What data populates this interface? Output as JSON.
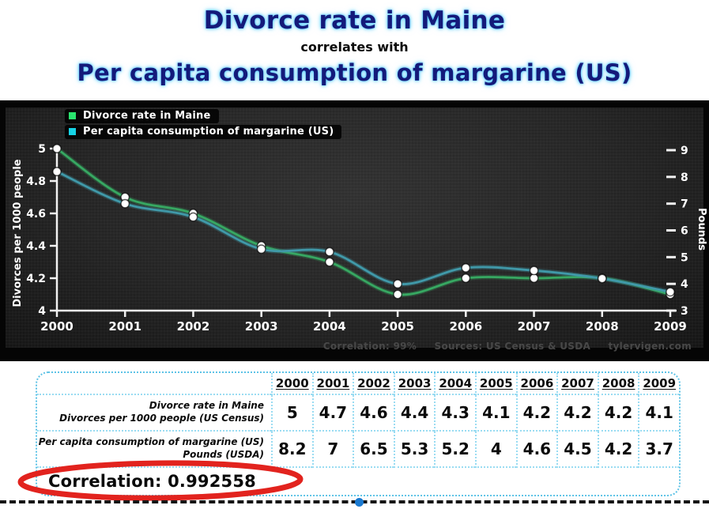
{
  "page": {
    "title_line1": "Divorce rate in Maine",
    "title_line2": "correlates with",
    "title_line3": "Per capita consumption of margarine (US)",
    "accent_blue": "#141a7a"
  },
  "chart": {
    "legend": [
      {
        "label": "Divorce rate in Maine",
        "color": "#2ae46e"
      },
      {
        "label": "Per capita consumption of margarine (US)",
        "color": "#16d3e6"
      }
    ],
    "footer": "Correlation: 99%     Sources: US Census & USDA     tylervigen.com"
  },
  "chart_data": {
    "type": "line",
    "title": "Divorce rate in Maine correlates with Per capita consumption of margarine (US)",
    "x": [
      "2000",
      "2001",
      "2002",
      "2003",
      "2004",
      "2005",
      "2006",
      "2007",
      "2008",
      "2009"
    ],
    "series": [
      {
        "name": "Divorce rate in Maine",
        "axis": "left",
        "line_color": "#37a862",
        "marker_color": "#ffffff",
        "values": [
          5,
          4.7,
          4.6,
          4.4,
          4.3,
          4.1,
          4.2,
          4.2,
          4.2,
          4.1
        ]
      },
      {
        "name": "Per capita consumption of margarine (US)",
        "axis": "right",
        "line_color": "#4099a9",
        "marker_color": "#ffffff",
        "values": [
          8.2,
          7,
          6.5,
          5.3,
          5.2,
          4,
          4.6,
          4.5,
          4.2,
          3.7
        ]
      }
    ],
    "left_axis": {
      "label": "Divorces per 1000 people",
      "ticks": [
        5,
        4.8,
        4.6,
        4.4,
        4.2,
        4
      ],
      "range": [
        4,
        5
      ]
    },
    "right_axis": {
      "label": "Pounds",
      "ticks": [
        9,
        8,
        7,
        6,
        5,
        4,
        3
      ],
      "range": [
        3,
        9
      ]
    },
    "legend_position": "top-left",
    "grid": false
  },
  "table": {
    "years": [
      "2000",
      "2001",
      "2002",
      "2003",
      "2004",
      "2005",
      "2006",
      "2007",
      "2008",
      "2009"
    ],
    "rows": [
      {
        "label_main": "Divorce rate in Maine",
        "label_sub": "Divorces per 1000 people (US Census)",
        "values": [
          "5",
          "4.7",
          "4.6",
          "4.4",
          "4.3",
          "4.1",
          "4.2",
          "4.2",
          "4.2",
          "4.1"
        ]
      },
      {
        "label_main": "Per capita consumption of margarine (US)",
        "label_sub": "Pounds (USDA)",
        "values": [
          "8.2",
          "7",
          "6.5",
          "5.3",
          "5.2",
          "4",
          "4.6",
          "4.5",
          "4.2",
          "3.7"
        ]
      }
    ],
    "correlation": "Correlation: 0.992558"
  }
}
